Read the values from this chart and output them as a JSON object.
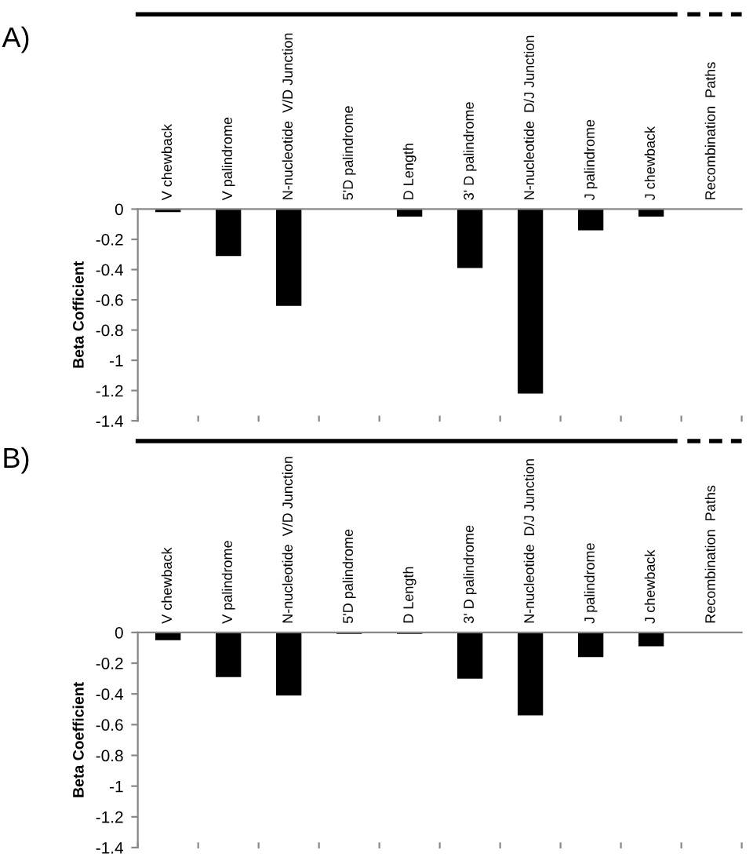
{
  "chart_data": [
    {
      "type": "bar",
      "title": "A)",
      "ylabel": "Beta Cofficient",
      "categories": [
        "V chewback",
        "V palindrome",
        "N-nucleotide  V/D Junction",
        "5'D palindrome",
        "D Length",
        "3' D palindrome",
        "N-nucleotide  D/J Junction",
        "J palindrome",
        "J chewback",
        "Recombination  Paths"
      ],
      "values": [
        -0.02,
        -0.31,
        -0.64,
        0,
        -0.05,
        -0.39,
        -1.22,
        -0.14,
        -0.05,
        null
      ],
      "color": "#000000",
      "ylim": [
        -1.4,
        0
      ],
      "yticks": [
        0,
        -0.2,
        -0.4,
        -0.6,
        -0.8,
        -1,
        -1.2,
        -1.4
      ],
      "grid": false,
      "legend": false
    },
    {
      "type": "bar",
      "title": "B)",
      "ylabel": "Beta Coefficient",
      "categories": [
        "V chewback",
        "V palindrome",
        "N-nucleotide  V/D Junction",
        "5'D palindrome",
        "D Length",
        "3' D palindrome",
        "N-nucleotide  D/J Junction",
        "J palindrome",
        "J chewback",
        "Recombination  Paths"
      ],
      "values": [
        -0.05,
        -0.29,
        -0.41,
        -0.01,
        -0.01,
        -0.3,
        -0.54,
        -0.16,
        -0.09,
        null
      ],
      "color": "#000000",
      "ylim": [
        -1.4,
        0
      ],
      "yticks": [
        0,
        -0.2,
        -0.4,
        -0.6,
        -0.8,
        -1,
        -1.2,
        -1.4
      ],
      "grid": false,
      "legend": false
    }
  ]
}
